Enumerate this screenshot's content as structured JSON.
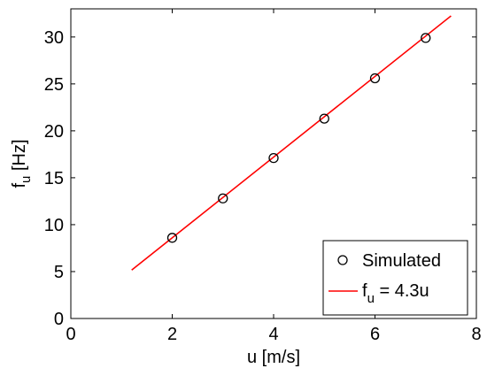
{
  "chart_data": {
    "type": "scatter",
    "title": "",
    "xlabel": "u [m/s]",
    "ylabel": {
      "main": "f",
      "sub": "u",
      "unit": " [Hz]"
    },
    "xlim": [
      0,
      8
    ],
    "ylim": [
      0,
      33
    ],
    "xticks": [
      0,
      2,
      4,
      6,
      8
    ],
    "yticks": [
      0,
      5,
      10,
      15,
      20,
      25,
      30
    ],
    "grid": false,
    "legend_position": "bottom-right",
    "series": [
      {
        "name": "Simulated",
        "kind": "scatter",
        "marker": "circle-open",
        "color": "#000000",
        "points": [
          {
            "x": 2,
            "y": 8.6
          },
          {
            "x": 3,
            "y": 12.8
          },
          {
            "x": 4,
            "y": 17.1
          },
          {
            "x": 5,
            "y": 21.3
          },
          {
            "x": 6,
            "y": 25.6
          },
          {
            "x": 7,
            "y": 29.9
          }
        ]
      },
      {
        "name": "f_u = 4.3u",
        "legend_label": {
          "main": "f",
          "sub": "u",
          "rest": " = 4.3u"
        },
        "kind": "line",
        "color": "#ff0000",
        "slope": 4.3,
        "intercept": 0,
        "x_range": [
          1.2,
          7.5
        ]
      }
    ]
  }
}
